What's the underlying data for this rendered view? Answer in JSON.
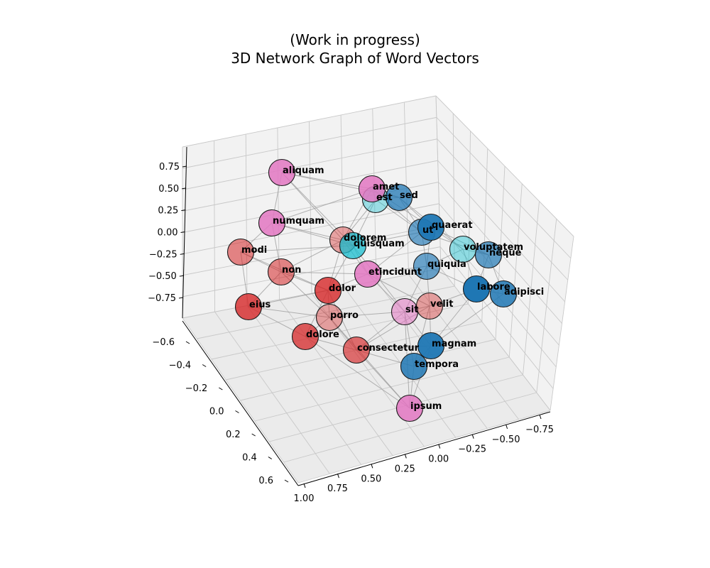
{
  "title_line1": "(Work in progress)",
  "title_line2": "3D Network Graph of Word Vectors",
  "chart_data": {
    "type": "scatter",
    "projection": "3d",
    "z_ticks": [
      "0.75",
      "0.50",
      "0.25",
      "0.00",
      "−0.25",
      "−0.50",
      "−0.75"
    ],
    "y_ticks": [
      "−0.6",
      "−0.4",
      "−0.2",
      "0.0",
      "0.2",
      "0.4",
      "0.6"
    ],
    "x_ticks": [
      "1.00",
      "0.75",
      "0.50",
      "0.25",
      "0.00",
      "−0.25",
      "−0.50",
      "−0.75"
    ],
    "grid": true,
    "nodes": [
      {
        "word": "aliquam",
        "color": "#e377c2",
        "alpha": 0.85
      },
      {
        "word": "numquam",
        "color": "#e377c2",
        "alpha": 0.85
      },
      {
        "word": "modi",
        "color": "#d62728",
        "alpha": 0.55
      },
      {
        "word": "non",
        "color": "#d62728",
        "alpha": 0.55
      },
      {
        "word": "eius",
        "color": "#d62728",
        "alpha": 0.8
      },
      {
        "word": "dolor",
        "color": "#d62728",
        "alpha": 0.8
      },
      {
        "word": "porro",
        "color": "#d62728",
        "alpha": 0.4
      },
      {
        "word": "dolore",
        "color": "#d62728",
        "alpha": 0.75
      },
      {
        "word": "consectetur",
        "color": "#d62728",
        "alpha": 0.65
      },
      {
        "word": "dolorem",
        "color": "#d62728",
        "alpha": 0.4
      },
      {
        "word": "quisquam",
        "color": "#17becf",
        "alpha": 0.75
      },
      {
        "word": "amet",
        "color": "#e377c2",
        "alpha": 0.85
      },
      {
        "word": "est",
        "color": "#17becf",
        "alpha": 0.4
      },
      {
        "word": "sed",
        "color": "#1f77b4",
        "alpha": 0.75
      },
      {
        "word": "ut",
        "color": "#1f77b4",
        "alpha": 0.65
      },
      {
        "word": "quaerat",
        "color": "#1f77b4",
        "alpha": 0.95
      },
      {
        "word": "voluptatem",
        "color": "#17becf",
        "alpha": 0.45
      },
      {
        "word": "neque",
        "color": "#1f77b4",
        "alpha": 0.7
      },
      {
        "word": "etincidunt",
        "color": "#e377c2",
        "alpha": 0.85
      },
      {
        "word": "quiquia",
        "color": "#1f77b4",
        "alpha": 0.65
      },
      {
        "word": "labore",
        "color": "#1f77b4",
        "alpha": 1.0
      },
      {
        "word": "adipisci",
        "color": "#1f77b4",
        "alpha": 0.85
      },
      {
        "word": "sit",
        "color": "#e377c2",
        "alpha": 0.55
      },
      {
        "word": "velit",
        "color": "#d62728",
        "alpha": 0.4
      },
      {
        "word": "magnam",
        "color": "#1f77b4",
        "alpha": 0.95
      },
      {
        "word": "tempora",
        "color": "#1f77b4",
        "alpha": 0.85
      },
      {
        "word": "ipsum",
        "color": "#e377c2",
        "alpha": 0.85
      }
    ],
    "edges": [
      [
        "aliquam",
        "numquam"
      ],
      [
        "aliquam",
        "amet"
      ],
      [
        "aliquam",
        "dolorem"
      ],
      [
        "aliquam",
        "quisquam"
      ],
      [
        "aliquam",
        "sed"
      ],
      [
        "numquam",
        "modi"
      ],
      [
        "numquam",
        "non"
      ],
      [
        "numquam",
        "dolorem"
      ],
      [
        "numquam",
        "amet"
      ],
      [
        "numquam",
        "quisquam"
      ],
      [
        "modi",
        "non"
      ],
      [
        "modi",
        "eius"
      ],
      [
        "modi",
        "dolor"
      ],
      [
        "modi",
        "quisquam"
      ],
      [
        "non",
        "dolor"
      ],
      [
        "non",
        "eius"
      ],
      [
        "non",
        "porro"
      ],
      [
        "non",
        "dolorem"
      ],
      [
        "non",
        "etincidunt"
      ],
      [
        "eius",
        "dolore"
      ],
      [
        "eius",
        "porro"
      ],
      [
        "eius",
        "dolor"
      ],
      [
        "dolor",
        "porro"
      ],
      [
        "dolor",
        "dolore"
      ],
      [
        "dolor",
        "etincidunt"
      ],
      [
        "dolor",
        "dolorem"
      ],
      [
        "dolor",
        "quisquam"
      ],
      [
        "dolor",
        "consectetur"
      ],
      [
        "porro",
        "dolore"
      ],
      [
        "porro",
        "consectetur"
      ],
      [
        "porro",
        "sit"
      ],
      [
        "porro",
        "ipsum"
      ],
      [
        "dolore",
        "consectetur"
      ],
      [
        "dolore",
        "ipsum"
      ],
      [
        "consectetur",
        "sit"
      ],
      [
        "consectetur",
        "ipsum"
      ],
      [
        "consectetur",
        "magnam"
      ],
      [
        "consectetur",
        "tempora"
      ],
      [
        "consectetur",
        "velit"
      ],
      [
        "dolorem",
        "quisquam"
      ],
      [
        "dolorem",
        "est"
      ],
      [
        "dolorem",
        "amet"
      ],
      [
        "dolorem",
        "etincidunt"
      ],
      [
        "quisquam",
        "etincidunt"
      ],
      [
        "quisquam",
        "ut"
      ],
      [
        "quisquam",
        "est"
      ],
      [
        "quisquam",
        "sit"
      ],
      [
        "amet",
        "est"
      ],
      [
        "amet",
        "sed"
      ],
      [
        "amet",
        "ut"
      ],
      [
        "amet",
        "quaerat"
      ],
      [
        "est",
        "sed"
      ],
      [
        "est",
        "ut"
      ],
      [
        "sed",
        "ut"
      ],
      [
        "sed",
        "quaerat"
      ],
      [
        "sed",
        "voluptatem"
      ],
      [
        "ut",
        "quaerat"
      ],
      [
        "ut",
        "quiquia"
      ],
      [
        "ut",
        "etincidunt"
      ],
      [
        "ut",
        "neque"
      ],
      [
        "quaerat",
        "voluptatem"
      ],
      [
        "quaerat",
        "neque"
      ],
      [
        "quaerat",
        "quiquia"
      ],
      [
        "voluptatem",
        "neque"
      ],
      [
        "voluptatem",
        "labore"
      ],
      [
        "voluptatem",
        "quiquia"
      ],
      [
        "neque",
        "adipisci"
      ],
      [
        "neque",
        "labore"
      ],
      [
        "etincidunt",
        "quiquia"
      ],
      [
        "etincidunt",
        "sit"
      ],
      [
        "etincidunt",
        "velit"
      ],
      [
        "quiquia",
        "labore"
      ],
      [
        "quiquia",
        "sit"
      ],
      [
        "quiquia",
        "velit"
      ],
      [
        "labore",
        "adipisci"
      ],
      [
        "labore",
        "magnam"
      ],
      [
        "labore",
        "velit"
      ],
      [
        "adipisci",
        "magnam"
      ],
      [
        "sit",
        "velit"
      ],
      [
        "sit",
        "magnam"
      ],
      [
        "sit",
        "tempora"
      ],
      [
        "sit",
        "ipsum"
      ],
      [
        "velit",
        "magnam"
      ],
      [
        "velit",
        "tempora"
      ],
      [
        "magnam",
        "tempora"
      ],
      [
        "tempora",
        "ipsum"
      ],
      [
        "magnam",
        "ipsum"
      ]
    ]
  }
}
